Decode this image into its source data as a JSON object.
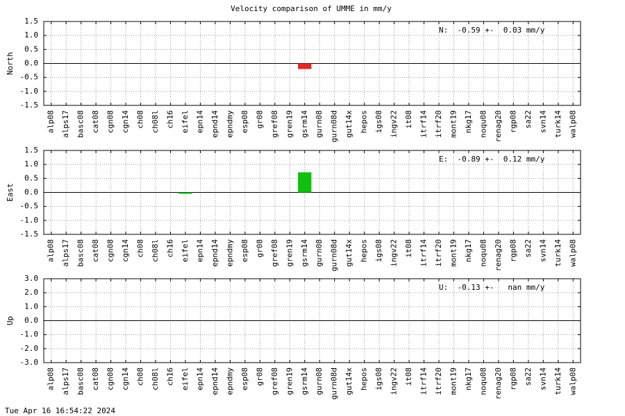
{
  "title": "Velocity comparison of UMME in mm/y",
  "timestamp": "Tue Apr 16 16:54:22 2024",
  "chart_data": [
    {
      "type": "bar",
      "ylabel": "North",
      "annotation": "N:  -0.59 +-  0.03 mm/y",
      "color": "#e02828",
      "grid": true,
      "categories": [
        "alp08",
        "alps17",
        "basc08",
        "cat08",
        "cgn08",
        "cgn14",
        "ch08",
        "ch08l",
        "ch16",
        "eifel",
        "epn14",
        "epnd14",
        "epndmy",
        "esp08",
        "gr08",
        "gref08",
        "gren19",
        "gsrm14",
        "gurn08",
        "gurn08d",
        "gut14x",
        "hepos",
        "igs08",
        "ingv22",
        "it08",
        "itrf14",
        "itrf20",
        "mont19",
        "nkg17",
        "noqu08",
        "renag20",
        "rgp08",
        "sa22",
        "svn14",
        "turk14",
        "walp08"
      ],
      "values": [
        null,
        null,
        null,
        null,
        null,
        null,
        null,
        null,
        null,
        null,
        null,
        null,
        null,
        null,
        null,
        null,
        null,
        -0.2,
        null,
        null,
        null,
        null,
        null,
        null,
        null,
        null,
        null,
        null,
        null,
        null,
        null,
        null,
        null,
        null,
        null,
        null
      ],
      "ylim": [
        -1.5,
        1.5
      ],
      "yticks": [
        1.5,
        {
          "value": 1,
          "label": "1.0"
        },
        0.5,
        {
          "value": 0,
          "label": "0.0"
        },
        -0.5,
        {
          "value": -1,
          "label": "-1.0"
        },
        -1.5
      ]
    },
    {
      "type": "bar",
      "ylabel": "East",
      "annotation": "E:  -0.89 +-  0.12 mm/y",
      "color": "#10c010",
      "grid": true,
      "categories": [
        "alp08",
        "alps17",
        "basc08",
        "cat08",
        "cgn08",
        "cgn14",
        "ch08",
        "ch08l",
        "ch16",
        "eifel",
        "epn14",
        "epnd14",
        "epndmy",
        "esp08",
        "gr08",
        "gref08",
        "gren19",
        "gsrm14",
        "gurn08",
        "gurn08d",
        "gut14x",
        "hepos",
        "igs08",
        "ingv22",
        "it08",
        "itrf14",
        "itrf20",
        "mont19",
        "nkg17",
        "noqu08",
        "renag20",
        "rgp08",
        "sa22",
        "svn14",
        "turk14",
        "walp08"
      ],
      "values": [
        null,
        null,
        null,
        null,
        null,
        null,
        null,
        null,
        null,
        -0.05,
        null,
        null,
        null,
        null,
        null,
        null,
        null,
        0.72,
        null,
        null,
        null,
        null,
        null,
        null,
        null,
        null,
        null,
        null,
        null,
        null,
        null,
        null,
        null,
        null,
        null,
        null
      ],
      "ylim": [
        -1.5,
        1.5
      ],
      "yticks": [
        1.5,
        {
          "value": 1,
          "label": "1.0"
        },
        0.5,
        {
          "value": 0,
          "label": "0.0"
        },
        -0.5,
        {
          "value": -1,
          "label": "-1.0"
        },
        -1.5
      ]
    },
    {
      "type": "bar",
      "ylabel": "Up",
      "annotation": "U:  -0.13 +-   nan mm/y",
      "grid": true,
      "categories": [
        "alp08",
        "alps17",
        "basc08",
        "cat08",
        "cgn08",
        "cgn14",
        "ch08",
        "ch08l",
        "ch16",
        "eifel",
        "epn14",
        "epnd14",
        "epndmy",
        "esp08",
        "gr08",
        "gref08",
        "gren19",
        "gsrm14",
        "gurn08",
        "gurn08d",
        "gut14x",
        "hepos",
        "igs08",
        "ingv22",
        "it08",
        "itrf14",
        "itrf20",
        "mont19",
        "nkg17",
        "noqu08",
        "renag20",
        "rgp08",
        "sa22",
        "svn14",
        "turk14",
        "walp08"
      ],
      "values": [
        null,
        null,
        null,
        null,
        null,
        null,
        null,
        null,
        null,
        null,
        null,
        null,
        null,
        null,
        null,
        null,
        null,
        null,
        null,
        null,
        null,
        null,
        null,
        null,
        null,
        null,
        null,
        null,
        null,
        null,
        null,
        null,
        null,
        null,
        null,
        null
      ],
      "ylim": [
        -3,
        3
      ],
      "yticks": [
        {
          "value": 3,
          "label": "3.0"
        },
        {
          "value": 2,
          "label": "2.0"
        },
        {
          "value": 1,
          "label": "1.0"
        },
        {
          "value": 0,
          "label": "0.0"
        },
        {
          "value": -1,
          "label": "-1.0"
        },
        {
          "value": -2,
          "label": "-2.0"
        },
        {
          "value": -3,
          "label": "-3.0"
        }
      ]
    }
  ]
}
